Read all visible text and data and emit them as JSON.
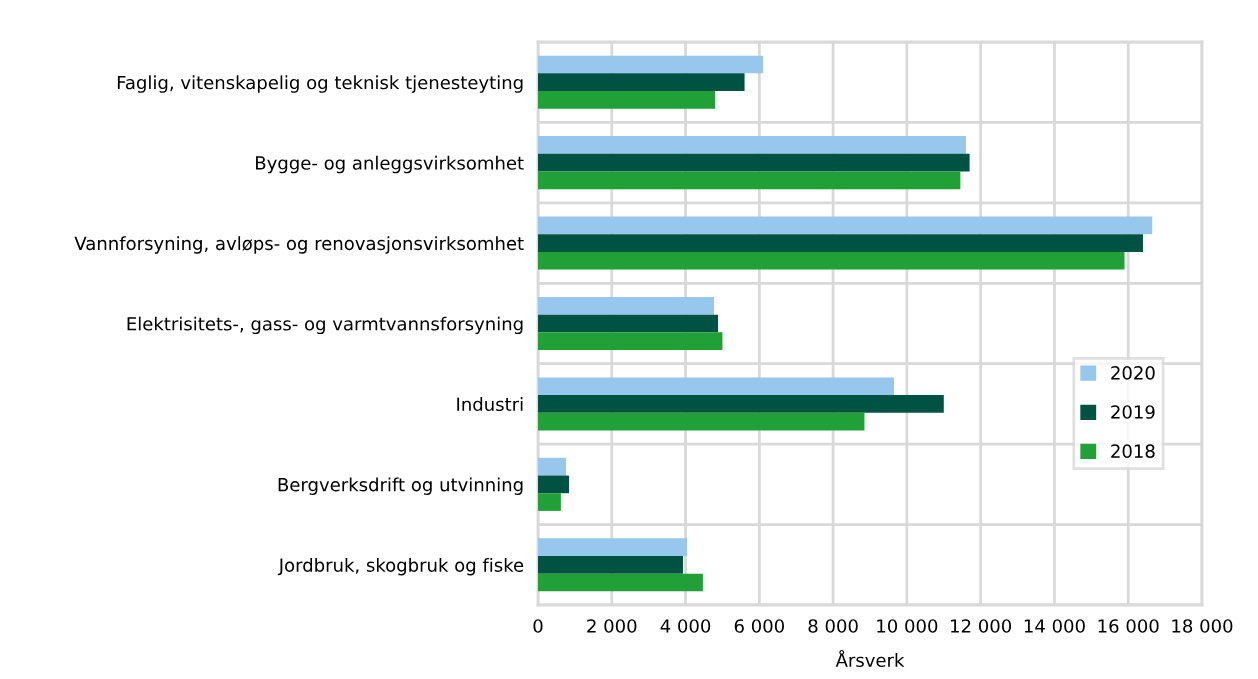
{
  "chart_data": {
    "type": "bar",
    "orientation": "horizontal",
    "xlabel": "Årsverk",
    "categories": [
      "Faglig, vitenskapelig og teknisk tjenesteyting",
      "Bygge- og anleggsvirksomhet",
      "Vannforsyning, avløps- og renovasjonsvirksomhet",
      "Elektrisitets-, gass- og varmtvannsforsyning",
      "Industri",
      "Bergverksdrift og utvinning",
      "Jordbruk, skogbruk og fiske"
    ],
    "series": [
      {
        "name": "2020",
        "color": "#97c7ec",
        "values": [
          6100,
          11600,
          16650,
          4770,
          9650,
          760,
          4040
        ]
      },
      {
        "name": "2019",
        "color": "#005342",
        "values": [
          5600,
          11700,
          16400,
          4880,
          11000,
          840,
          3930
        ]
      },
      {
        "name": "2018",
        "color": "#21a038",
        "values": [
          4800,
          11450,
          15900,
          5000,
          8850,
          620,
          4470
        ]
      }
    ],
    "xlim": [
      0,
      18000
    ],
    "xticks": [
      {
        "value": 0,
        "label": "0"
      },
      {
        "value": 2000,
        "label": "2 000"
      },
      {
        "value": 4000,
        "label": "4 000"
      },
      {
        "value": 6000,
        "label": "6 000"
      },
      {
        "value": 8000,
        "label": "8 000"
      },
      {
        "value": 10000,
        "label": "10 000"
      },
      {
        "value": 12000,
        "label": "12 000"
      },
      {
        "value": 14000,
        "label": "14 000"
      },
      {
        "value": 16000,
        "label": "16 000"
      },
      {
        "value": 18000,
        "label": "18 000"
      }
    ],
    "grid": true,
    "legend": "right"
  }
}
